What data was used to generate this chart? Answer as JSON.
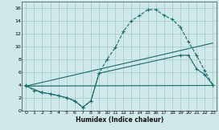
{
  "xlabel": "Humidex (Indice chaleur)",
  "bg_color": "#cfe8ea",
  "grid_color": "#aacdd0",
  "line_color": "#1a6b6b",
  "xlim": [
    -0.5,
    23.5
  ],
  "ylim": [
    0,
    17
  ],
  "xticks": [
    0,
    1,
    2,
    3,
    4,
    5,
    6,
    7,
    8,
    9,
    10,
    11,
    12,
    13,
    14,
    15,
    16,
    17,
    18,
    19,
    20,
    21,
    22,
    23
  ],
  "yticks": [
    0,
    2,
    4,
    6,
    8,
    10,
    12,
    14,
    16
  ],
  "series1_x": [
    0,
    1,
    2,
    3,
    4,
    5,
    6,
    7,
    8,
    9,
    10,
    11,
    12,
    13,
    14,
    15,
    16,
    17,
    18,
    19,
    20,
    21,
    22,
    23
  ],
  "series1_y": [
    4.0,
    3.1,
    2.8,
    2.6,
    2.3,
    2.0,
    1.5,
    0.5,
    1.5,
    5.8,
    8.0,
    9.8,
    12.3,
    14.0,
    14.8,
    15.7,
    15.7,
    14.8,
    14.2,
    13.0,
    10.7,
    8.6,
    6.2,
    4.0
  ],
  "series2_x": [
    0,
    23
  ],
  "series2_y": [
    3.8,
    3.9
  ],
  "series3_x": [
    0,
    23
  ],
  "series3_y": [
    3.8,
    10.5
  ],
  "series4_x": [
    0,
    2,
    3,
    4,
    5,
    6,
    7,
    8,
    9,
    19,
    20,
    21,
    22,
    23
  ],
  "series4_y": [
    3.8,
    2.8,
    2.6,
    2.3,
    2.0,
    1.5,
    0.5,
    1.5,
    5.8,
    8.6,
    8.6,
    6.5,
    5.6,
    4.0
  ]
}
